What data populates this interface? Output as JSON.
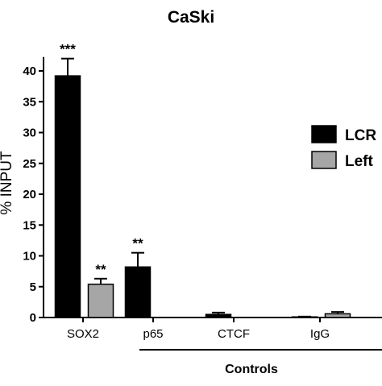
{
  "chart_data": {
    "type": "bar",
    "title": "CaSki",
    "xlabel": "",
    "ylabel": "% INPUT",
    "ylim": [
      0,
      42
    ],
    "yticks": [
      0,
      5,
      10,
      15,
      20,
      25,
      30,
      35,
      40
    ],
    "grid": false,
    "legend_position": "right",
    "categories": [
      "SOX2",
      "p65",
      "CTCF",
      "IgG"
    ],
    "series": [
      {
        "name": "LCR",
        "color": "#000000",
        "values": [
          39.2,
          8.2,
          0.5,
          0.1
        ],
        "errors": [
          2.8,
          2.3,
          0.3,
          0.05
        ],
        "significance": [
          "***",
          "**",
          "",
          ""
        ]
      },
      {
        "name": "Left",
        "color": "#a6a6a6",
        "values": [
          5.4,
          0,
          0,
          0.6
        ],
        "errors": [
          0.9,
          0,
          0,
          0.3
        ],
        "significance": [
          "**",
          "",
          "",
          ""
        ]
      }
    ],
    "group_annotation": {
      "label": "Controls",
      "categories": [
        "p65",
        "CTCF",
        "IgG"
      ]
    }
  }
}
